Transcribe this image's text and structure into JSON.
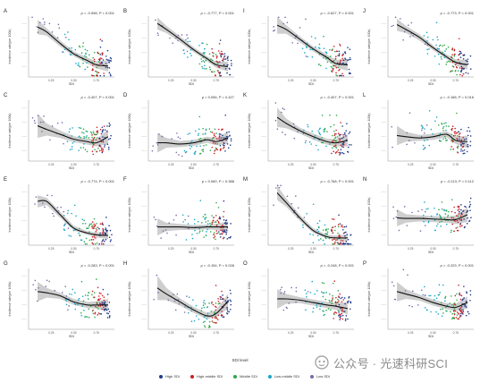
{
  "panels": [
    {
      "letter": "A",
      "stat": "ρ = -0.598, P < 0.001",
      "xlabel": "SDI",
      "ylabel": "Incidence rate(per 100k)",
      "trend": [
        0.82,
        0.74,
        0.55,
        0.38,
        0.27,
        0.2,
        0.18
      ],
      "band": [
        0.12,
        0.06,
        0.05,
        0.04,
        0.05,
        0.06,
        0.09
      ]
    },
    {
      "letter": "B",
      "stat": "ρ = -0.777, P < 0.001",
      "xlabel": "SDI",
      "ylabel": "Incidence rate(per 100k)",
      "trend": [
        0.88,
        0.78,
        0.62,
        0.45,
        0.3,
        0.2,
        0.17
      ],
      "band": [
        0.1,
        0.06,
        0.05,
        0.04,
        0.04,
        0.05,
        0.08
      ]
    },
    {
      "letter": "I",
      "stat": "ρ = -0.627, P < 0.001",
      "xlabel": "SDI",
      "ylabel": "Incidence rate(per 100k)",
      "trend": [
        0.85,
        0.78,
        0.62,
        0.46,
        0.32,
        0.22,
        0.2
      ],
      "band": [
        0.14,
        0.07,
        0.05,
        0.04,
        0.05,
        0.06,
        0.1
      ]
    },
    {
      "letter": "J",
      "stat": "ρ = -0.773, P < 0.001",
      "xlabel": "SDI",
      "ylabel": "Incidence rate(per 100k)",
      "trend": [
        0.86,
        0.78,
        0.65,
        0.48,
        0.33,
        0.24,
        0.2
      ],
      "band": [
        0.1,
        0.06,
        0.05,
        0.04,
        0.04,
        0.05,
        0.08
      ]
    },
    {
      "letter": "C",
      "stat": "ρ = -0.407, P < 0.001",
      "xlabel": "SDI",
      "ylabel": "Incidence rate(per 100k)",
      "trend": [
        0.58,
        0.52,
        0.44,
        0.36,
        0.32,
        0.3,
        0.4
      ],
      "band": [
        0.2,
        0.1,
        0.06,
        0.05,
        0.05,
        0.06,
        0.12
      ]
    },
    {
      "letter": "D",
      "stat": "ρ = 0.056, P = 0.427",
      "xlabel": "SDI",
      "ylabel": "Incidence rate(per 100k)",
      "trend": [
        0.3,
        0.3,
        0.28,
        0.3,
        0.35,
        0.32,
        0.38
      ],
      "band": [
        0.16,
        0.08,
        0.05,
        0.05,
        0.05,
        0.06,
        0.1
      ]
    },
    {
      "letter": "K",
      "stat": "ρ = -0.407, P < 0.001",
      "xlabel": "SDI",
      "ylabel": "Incidence rate(per 100k)",
      "trend": [
        0.72,
        0.62,
        0.5,
        0.4,
        0.32,
        0.3,
        0.34
      ],
      "band": [
        0.16,
        0.08,
        0.05,
        0.05,
        0.05,
        0.06,
        0.1
      ]
    },
    {
      "letter": "L",
      "stat": "ρ = -0.168, P = 0.016",
      "xlabel": "SDI",
      "ylabel": "Incidence rate(per 100k)",
      "trend": [
        0.42,
        0.4,
        0.38,
        0.4,
        0.44,
        0.34,
        0.32
      ],
      "band": [
        0.16,
        0.08,
        0.05,
        0.05,
        0.05,
        0.06,
        0.1
      ]
    },
    {
      "letter": "E",
      "stat": "ρ = -0.774, P < 0.001",
      "xlabel": "SDI",
      "ylabel": "Incidence rate(per 100k)",
      "trend": [
        0.72,
        0.72,
        0.5,
        0.28,
        0.2,
        0.17,
        0.16
      ],
      "band": [
        0.1,
        0.06,
        0.05,
        0.04,
        0.03,
        0.04,
        0.06
      ]
    },
    {
      "letter": "F",
      "stat": "ρ = 0.060, P = 0.388",
      "xlabel": "SDI",
      "ylabel": "Incidence rate(per 100k)",
      "trend": [
        0.3,
        0.3,
        0.3,
        0.29,
        0.3,
        0.3,
        0.3
      ],
      "band": [
        0.14,
        0.07,
        0.05,
        0.04,
        0.04,
        0.05,
        0.09
      ]
    },
    {
      "letter": "M",
      "stat": "ρ = -0.768, P < 0.001",
      "xlabel": "SDI",
      "ylabel": "Incidence rate(per 100k)",
      "trend": [
        0.86,
        0.7,
        0.45,
        0.24,
        0.14,
        0.12,
        0.12
      ],
      "band": [
        0.12,
        0.07,
        0.05,
        0.04,
        0.03,
        0.04,
        0.06
      ]
    },
    {
      "letter": "N",
      "stat": "ρ = -0.113, P = 0.112",
      "xlabel": "SDI",
      "ylabel": "Incidence rate(per 100k)",
      "trend": [
        0.45,
        0.44,
        0.44,
        0.43,
        0.42,
        0.42,
        0.5
      ],
      "band": [
        0.14,
        0.07,
        0.05,
        0.05,
        0.05,
        0.07,
        0.12
      ]
    },
    {
      "letter": "G",
      "stat": "ρ = -0.283, P < 0.001",
      "xlabel": "SDI",
      "ylabel": "Incidence rate(per 100k)",
      "trend": [
        0.62,
        0.6,
        0.55,
        0.45,
        0.4,
        0.4,
        0.4
      ],
      "band": [
        0.16,
        0.08,
        0.05,
        0.05,
        0.05,
        0.06,
        0.1
      ]
    },
    {
      "letter": "H",
      "stat": "ρ = -0.154, P = 0.028",
      "xlabel": "SDI",
      "ylabel": "Incidence rate(per 100k)",
      "trend": [
        0.68,
        0.58,
        0.45,
        0.32,
        0.22,
        0.26,
        0.46
      ],
      "band": [
        0.2,
        0.1,
        0.06,
        0.05,
        0.05,
        0.06,
        0.12
      ]
    },
    {
      "letter": "O",
      "stat": "ρ = -0.248, P < 0.001",
      "xlabel": "SDI",
      "ylabel": "Incidence rate(per 100k)",
      "trend": [
        0.5,
        0.5,
        0.48,
        0.44,
        0.4,
        0.38,
        0.34
      ],
      "band": [
        0.16,
        0.08,
        0.05,
        0.05,
        0.05,
        0.06,
        0.1
      ]
    },
    {
      "letter": "P",
      "stat": "ρ = -0.229, P < 0.001",
      "xlabel": "SDI",
      "ylabel": "Incidence rate(per 100k)",
      "trend": [
        0.62,
        0.58,
        0.52,
        0.44,
        0.38,
        0.36,
        0.44
      ],
      "band": [
        0.16,
        0.08,
        0.05,
        0.05,
        0.05,
        0.06,
        0.1
      ]
    }
  ],
  "x_ticks": [
    "0.25",
    "0.50",
    "0.75"
  ],
  "legend": {
    "title": "SDI level",
    "items": [
      {
        "label": "High SDI",
        "color": "#1f3b8a"
      },
      {
        "label": "High-middle SDI",
        "color": "#cc1f24"
      },
      {
        "label": "Middle SDI",
        "color": "#2fa84a"
      },
      {
        "label": "Low-middle SDI",
        "color": "#16a7c9"
      },
      {
        "label": "Low SDI",
        "color": "#7a6aa8"
      }
    ]
  },
  "watermark": {
    "text": "公众号 · 光速科研SCI"
  },
  "chart_data": {
    "type": "scatter",
    "x": [
      0.1,
      0.2,
      0.35,
      0.5,
      0.65,
      0.75,
      0.88
    ],
    "xlabel": "SDI",
    "ylabel": "Incidence rate(per 100k)",
    "xlim": [
      0.0,
      0.95
    ],
    "x_ticks": [
      0.25,
      0.5,
      0.75
    ],
    "grid": false,
    "legend_position": "bottom",
    "series": [
      {
        "name": "High SDI",
        "color": "#1f3b8a"
      },
      {
        "name": "High-middle SDI",
        "color": "#cc1f24"
      },
      {
        "name": "Middle SDI",
        "color": "#2fa84a"
      },
      {
        "name": "Low-middle SDI",
        "color": "#16a7c9"
      },
      {
        "name": "Low SDI",
        "color": "#7a6aa8"
      }
    ],
    "panels": [
      "A",
      "B",
      "I",
      "J",
      "C",
      "D",
      "K",
      "L",
      "E",
      "F",
      "M",
      "N",
      "G",
      "H",
      "O",
      "P"
    ]
  }
}
